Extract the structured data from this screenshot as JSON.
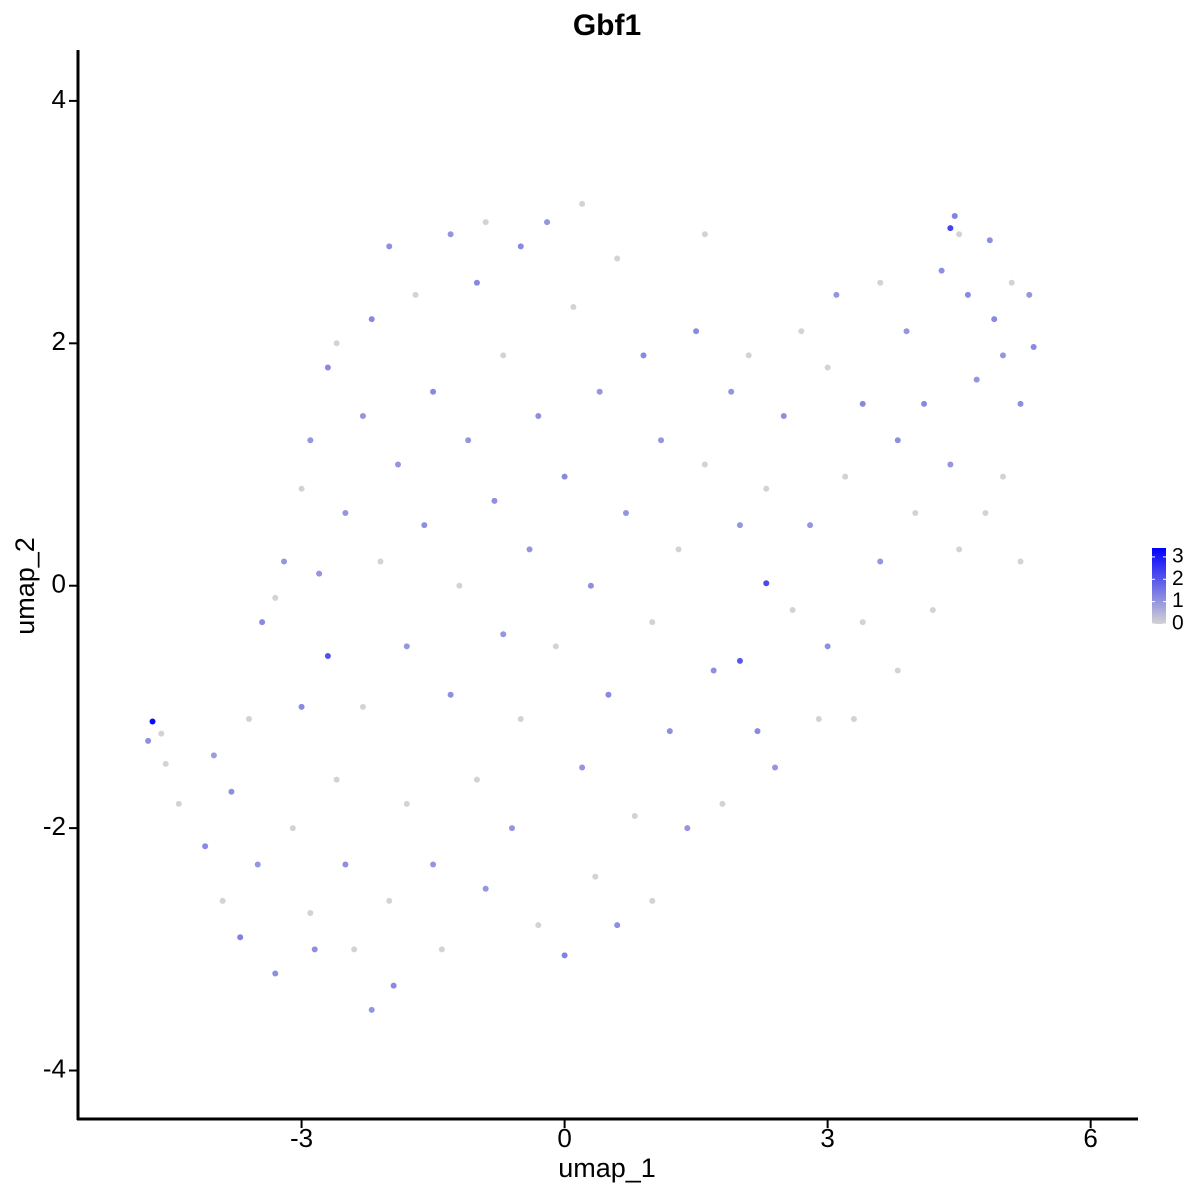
{
  "chart_data": {
    "type": "scatter",
    "title": "Gbf1",
    "x_label": "umap_1",
    "y_label": "umap_2",
    "xlim": [
      -5.55,
      6.54
    ],
    "ylim": [
      -4.4,
      4.42
    ],
    "xticks": [
      -3,
      0,
      3,
      6
    ],
    "yticks": [
      -4,
      -2,
      0,
      2,
      4
    ],
    "color_low": "#d3d3d3",
    "color_high": "#0000ff",
    "color_lim": [
      0,
      3.4
    ],
    "color_ticks": [
      0,
      1,
      2,
      3
    ],
    "x": [
      -4.7,
      -4.75,
      -4.6,
      -4.55,
      -4.4,
      -4.1,
      -4.0,
      -3.9,
      -3.8,
      -3.7,
      -3.6,
      -3.5,
      -3.45,
      -3.3,
      -3.3,
      -3.2,
      -3.1,
      -3.0,
      -3.0,
      -2.9,
      -2.9,
      -2.85,
      -2.8,
      -2.7,
      -2.7,
      -2.6,
      -2.6,
      -2.5,
      -2.5,
      -2.4,
      -2.3,
      -2.3,
      -2.2,
      -2.2,
      -2.1,
      -2.0,
      -2.0,
      -1.95,
      -1.9,
      -1.8,
      -1.8,
      -1.7,
      -1.6,
      -1.5,
      -1.5,
      -1.4,
      -1.3,
      -1.3,
      -1.2,
      -1.1,
      -1.0,
      -1.0,
      -0.9,
      -0.9,
      -0.8,
      -0.7,
      -0.7,
      -0.6,
      -0.5,
      -0.5,
      -0.4,
      -0.3,
      -0.3,
      -0.2,
      -0.1,
      0.0,
      0.0,
      0.1,
      0.2,
      0.2,
      0.3,
      0.35,
      0.4,
      0.5,
      0.6,
      0.6,
      0.7,
      0.8,
      0.9,
      1.0,
      1.0,
      1.1,
      1.2,
      1.3,
      1.4,
      1.5,
      1.6,
      1.6,
      1.7,
      1.8,
      1.9,
      2.0,
      2.0,
      2.1,
      2.2,
      2.3,
      2.3,
      2.4,
      2.5,
      2.6,
      2.7,
      2.8,
      2.9,
      3.0,
      3.0,
      3.1,
      3.2,
      3.3,
      3.4,
      3.4,
      3.6,
      3.6,
      3.8,
      3.8,
      3.9,
      4.0,
      4.1,
      4.2,
      4.3,
      4.4,
      4.45,
      4.5,
      4.5,
      4.6,
      4.7,
      4.8,
      4.85,
      4.9,
      5.0,
      5.0,
      5.1,
      5.2,
      5.2,
      5.3,
      5.35,
      4.4
    ],
    "values": [
      -1.12,
      -1.28,
      -1.22,
      -1.47,
      -1.8,
      -2.15,
      -1.4,
      -2.6,
      -1.7,
      -2.9,
      -1.1,
      -2.3,
      -0.3,
      -0.1,
      -3.2,
      0.2,
      -2.0,
      -1.0,
      0.8,
      1.2,
      -2.7,
      -3.0,
      0.1,
      -0.58,
      1.8,
      -1.6,
      2.0,
      0.6,
      -2.3,
      -3.0,
      1.4,
      -1.0,
      2.2,
      -3.5,
      0.2,
      -2.6,
      2.8,
      -3.3,
      1.0,
      -0.5,
      -1.8,
      2.4,
      0.5,
      -2.3,
      1.6,
      -3.0,
      2.9,
      -0.9,
      0.0,
      1.2,
      -1.6,
      2.5,
      -2.5,
      3.0,
      0.7,
      -0.4,
      1.9,
      -2.0,
      2.8,
      -1.1,
      0.3,
      1.4,
      -2.8,
      3.0,
      -0.5,
      0.9,
      -3.05,
      2.3,
      -1.5,
      3.15,
      0.0,
      -2.4,
      1.6,
      -0.9,
      2.7,
      -2.8,
      0.6,
      -1.9,
      1.9,
      -0.3,
      -2.6,
      1.2,
      -1.2,
      0.3,
      -2.0,
      2.1,
      1.0,
      2.9,
      -0.7,
      -1.8,
      1.6,
      -0.62,
      0.5,
      1.9,
      -1.2,
      0.02,
      0.8,
      -1.5,
      1.4,
      -0.2,
      2.1,
      0.5,
      -1.1,
      1.8,
      -0.5,
      2.4,
      0.9,
      -1.1,
      1.5,
      -0.3,
      2.5,
      0.2,
      1.2,
      -0.7,
      2.1,
      0.6,
      1.5,
      -0.2,
      2.6,
      1.0,
      3.05,
      2.9,
      0.3,
      2.4,
      1.7,
      0.6,
      2.85,
      2.2,
      1.9,
      0.9,
      2.5,
      1.5,
      0.2,
      2.4,
      1.97,
      2.95
    ],
    "expression": [
      3.2,
      1.1,
      0,
      0,
      0,
      1.2,
      0.9,
      0,
      1.1,
      1.3,
      0,
      1,
      1.2,
      0,
      1.1,
      1,
      0,
      1.2,
      0,
      1,
      0,
      1.1,
      1,
      2.1,
      1.2,
      0,
      0,
      1,
      1.1,
      0,
      1,
      0,
      1.2,
      1,
      0,
      0,
      1.1,
      1.2,
      1,
      1,
      0,
      0,
      1.1,
      1,
      1.2,
      0,
      1,
      1.1,
      0,
      1,
      0,
      1.2,
      1,
      0,
      1.1,
      1,
      0,
      1,
      1.2,
      0,
      1,
      1.1,
      0,
      1,
      0,
      1.2,
      1.3,
      0,
      1,
      0,
      1.1,
      0,
      1,
      1.2,
      0,
      1.1,
      1,
      0,
      1.2,
      0,
      0,
      1,
      1.1,
      0,
      1,
      1.2,
      0,
      0,
      1.1,
      0,
      1,
      2.0,
      1,
      0,
      1.2,
      2.2,
      0,
      1,
      1.1,
      0,
      0,
      1,
      0,
      0,
      1.1,
      1,
      0,
      0,
      1.2,
      0,
      0,
      1,
      1.1,
      0,
      1,
      0,
      1.2,
      0,
      1.1,
      1,
      1.3,
      0,
      0,
      1.2,
      1,
      0,
      1.1,
      1.2,
      1,
      0,
      0,
      1.1,
      0,
      1,
      1.2,
      2.3
    ]
  }
}
